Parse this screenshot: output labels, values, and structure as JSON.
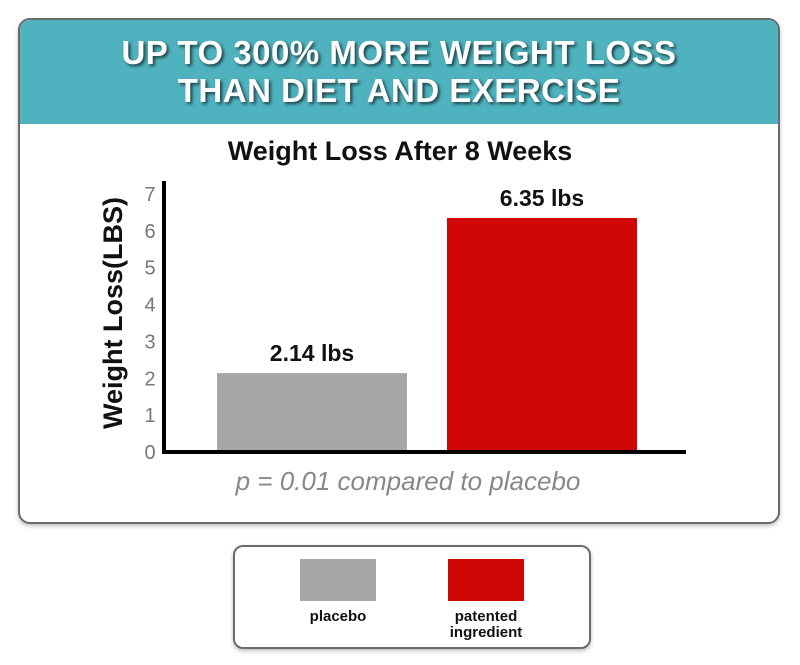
{
  "banner": {
    "line1": "UP TO 300% MORE WEIGHT LOSS",
    "line2": "THAN DIET AND EXERCISE"
  },
  "colors": {
    "banner": "#4fb3bf",
    "placebo": "#a6a6a6",
    "patented": "#d10606"
  },
  "chart_data": {
    "type": "bar",
    "title": "Weight Loss After 8 Weeks",
    "ylabel": "Weight Loss(LBS)",
    "xlabel": "",
    "categories": [
      "placebo",
      "patented ingredient"
    ],
    "values": [
      2.14,
      6.35
    ],
    "data_labels": [
      "2.14 lbs",
      "6.35 lbs"
    ],
    "ylim": [
      0,
      7
    ],
    "yticks": [
      0,
      1,
      2,
      3,
      4,
      5,
      6,
      7
    ],
    "grid": false,
    "legend_position": "bottom",
    "annotation": "p = 0.01 compared to placebo"
  },
  "legend": {
    "items": [
      {
        "label": "placebo"
      },
      {
        "label": "patented ingredient"
      }
    ]
  }
}
